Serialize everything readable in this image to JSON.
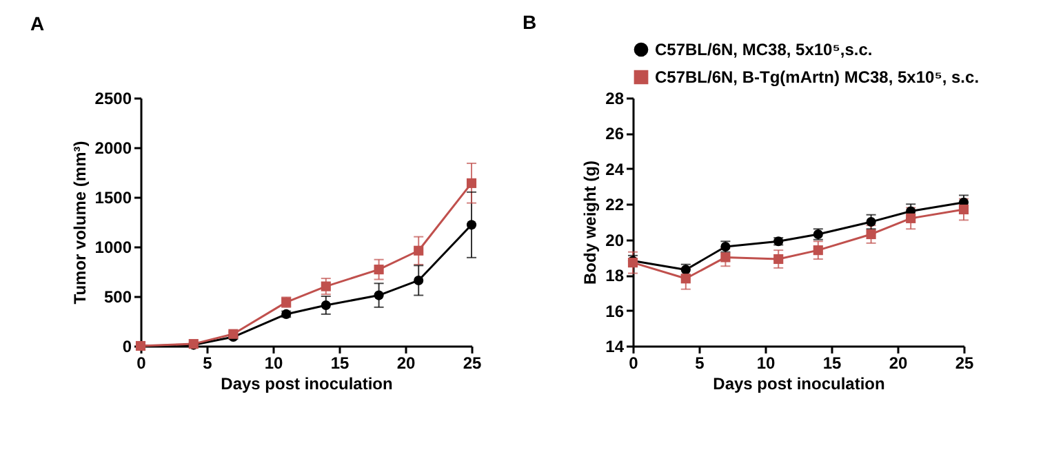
{
  "chart_data": [
    {
      "type": "line",
      "title": "A",
      "xlabel": "Days post inoculation",
      "ylabel": "Tumor volume (mm³)",
      "x": [
        0,
        4,
        7,
        11,
        14,
        18,
        21,
        25
      ],
      "xlim": [
        0,
        25
      ],
      "xticks": [
        0,
        5,
        10,
        15,
        20,
        25
      ],
      "ylim": [
        0,
        2500
      ],
      "yticks": [
        0,
        500,
        1000,
        1500,
        2000,
        2500
      ],
      "grid": false,
      "series": [
        {
          "color": "#000000",
          "marker": "circle",
          "values": [
            0,
            10,
            90,
            320,
            410,
            510,
            660,
            1220
          ],
          "errors": [
            null,
            10,
            20,
            30,
            90,
            120,
            150,
            330
          ]
        },
        {
          "color": "#c0504d",
          "marker": "square",
          "values": [
            0,
            20,
            120,
            440,
            600,
            770,
            960,
            1640
          ],
          "errors": [
            null,
            10,
            20,
            50,
            80,
            100,
            140,
            200
          ]
        }
      ]
    },
    {
      "type": "line",
      "title": "B",
      "xlabel": "Days post inoculation",
      "ylabel": "Body weight (g)",
      "x": [
        0,
        4,
        7,
        11,
        14,
        18,
        21,
        25
      ],
      "xlim": [
        0,
        25
      ],
      "xticks": [
        0,
        5,
        10,
        15,
        20,
        25
      ],
      "ylim": [
        14,
        28
      ],
      "yticks": [
        14,
        16,
        18,
        20,
        22,
        24,
        26,
        28
      ],
      "grid": false,
      "legend": "top",
      "series": [
        {
          "name": "C57BL/6N, MC38, 5x10⁵,s.c.",
          "color": "#000000",
          "marker": "circle",
          "values": [
            18.8,
            18.3,
            19.6,
            19.9,
            20.3,
            21.0,
            21.6,
            22.1
          ],
          "errors": [
            0.3,
            0.3,
            0.3,
            0.2,
            0.3,
            0.4,
            0.4,
            0.4
          ]
        },
        {
          "name": "C57BL/6N, B-Tg(mArtn) MC38, 5x10⁵, s.c.",
          "color": "#c0504d",
          "marker": "square",
          "values": [
            18.7,
            17.8,
            19.0,
            18.9,
            19.4,
            20.3,
            21.2,
            21.7
          ],
          "errors": [
            0.6,
            0.6,
            0.5,
            0.5,
            0.5,
            0.5,
            0.6,
            0.6
          ]
        }
      ]
    }
  ]
}
